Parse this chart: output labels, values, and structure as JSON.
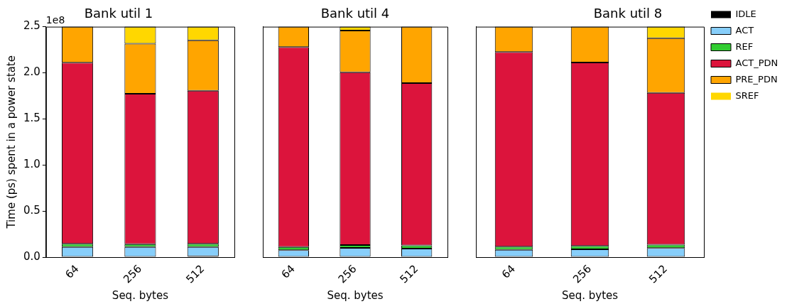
{
  "chart_data": [
    {
      "type": "bar",
      "title": "Bank util 1",
      "xlabel": "Seq. bytes",
      "ylabel": "Time (ps) spent in a power state",
      "annotations": [
        "1e8"
      ],
      "categories": [
        "64",
        "256",
        "512"
      ],
      "stacked": true,
      "ylim": [
        0,
        2.5
      ],
      "yticks": [
        {
          "value": 0,
          "label": "0.0"
        },
        0.5,
        {
          "value": 1,
          "label": "1.0"
        },
        1.5,
        {
          "value": 2,
          "label": "2.0"
        },
        2.5
      ],
      "legend": false,
      "series": [
        {
          "color": "#000000",
          "values": [
            0,
            0,
            0.01
          ]
        },
        {
          "color": "#87cefa",
          "values": [
            0.11,
            0.11,
            0.1
          ]
        },
        {
          "color": "#32cd32",
          "values": [
            0.035,
            0.03,
            0.035
          ]
        },
        {
          "color": "#dc143c",
          "values": [
            1.965,
            1.633,
            1.661
          ]
        },
        {
          "color": "#ffa500",
          "values": [
            0.39,
            0.543,
            0.546
          ]
        },
        {
          "color": "#ffd700",
          "values": [
            0,
            0.184,
            0.148
          ]
        }
      ]
    },
    {
      "type": "bar",
      "title": "Bank util 4",
      "xlabel": "Seq. bytes",
      "categories": [
        "64",
        "256",
        "512"
      ],
      "stacked": true,
      "ylim": [
        0,
        2.5
      ],
      "yticks": [
        {
          "value": 0,
          "label": null
        },
        {
          "value": 0.5,
          "label": null
        },
        {
          "value": 1,
          "label": null
        },
        {
          "value": 1.5,
          "label": null
        },
        {
          "value": 2,
          "label": null
        },
        {
          "value": 2.5,
          "label": null
        }
      ],
      "tick_labels": "x",
      "legend": false,
      "series": [
        {
          "color": "#000000",
          "values": [
            0,
            0,
            0
          ]
        },
        {
          "color": "#87cefa",
          "values": [
            0.075,
            0.1,
            0.093
          ]
        },
        {
          "color": "#32cd32",
          "values": [
            0.035,
            0.032,
            0.034
          ]
        },
        {
          "color": "#dc143c",
          "values": [
            2.17,
            1.873,
            1.762
          ]
        },
        {
          "color": "#ffa500",
          "values": [
            0.22,
            0.454,
            0.611
          ]
        },
        {
          "color": "#ffd700",
          "values": [
            0,
            0.041,
            0
          ]
        }
      ]
    },
    {
      "type": "bar",
      "title": "Bank util 8",
      "xlabel": "Seq. bytes",
      "categories": [
        "64",
        "256",
        "512"
      ],
      "stacked": true,
      "ylim": [
        0,
        2.5
      ],
      "yticks": [
        {
          "value": 0,
          "label": null
        },
        {
          "value": 0.5,
          "label": null
        },
        {
          "value": 1,
          "label": null
        },
        {
          "value": 1.5,
          "label": null
        },
        {
          "value": 2,
          "label": null
        },
        {
          "value": 2.5,
          "label": null
        }
      ],
      "tick_labels": "x",
      "legend": "right",
      "series": [
        {
          "name": "IDLE",
          "color": "#000000",
          "values": [
            0,
            0,
            0
          ]
        },
        {
          "name": "ACT",
          "color": "#87cefa",
          "values": [
            0.08,
            0.085,
            0.098
          ]
        },
        {
          "name": "REF",
          "color": "#32cd32",
          "values": [
            0.034,
            0.037,
            0.037
          ]
        },
        {
          "name": "ACT_PDN",
          "color": "#dc143c",
          "values": [
            2.112,
            1.99,
            1.648
          ]
        },
        {
          "name": "PRE_PDN",
          "color": "#ffa500",
          "values": [
            0.274,
            0.388,
            0.593
          ]
        },
        {
          "name": "SREF",
          "color": "#ffd700",
          "values": [
            0,
            0,
            0.124
          ]
        }
      ]
    }
  ]
}
